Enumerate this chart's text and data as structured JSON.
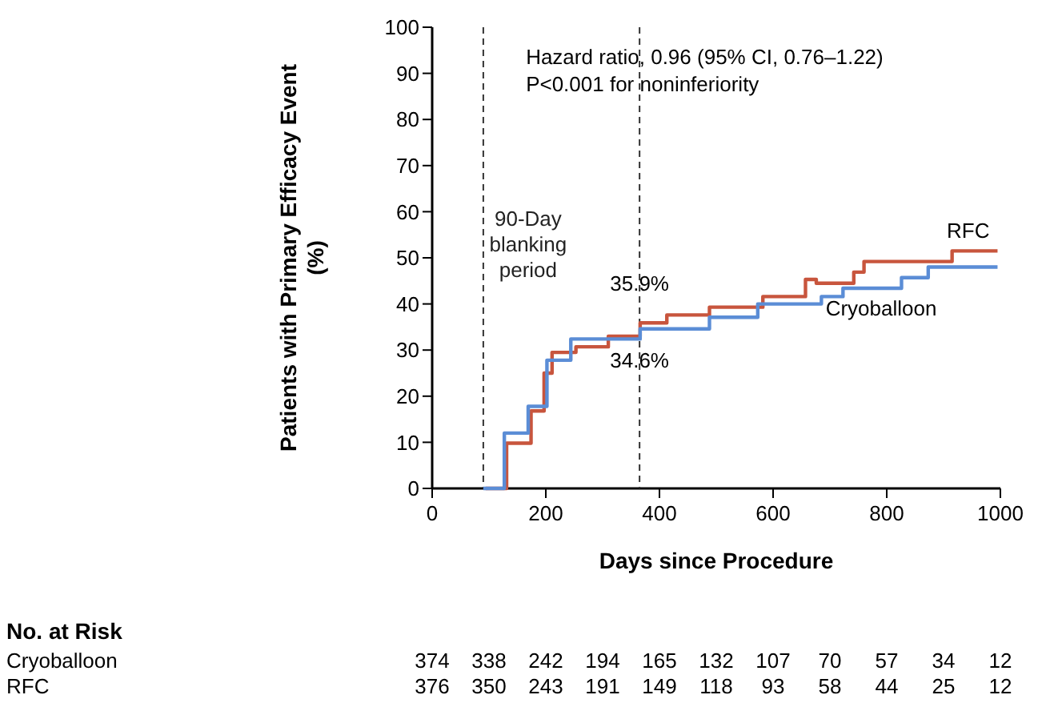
{
  "chart_data": {
    "type": "step",
    "xlabel": "Days since Procedure",
    "ylabel": "Patients with Primary Efficacy Event (%)",
    "xlim": [
      0,
      1000
    ],
    "xticks": [
      0,
      200,
      400,
      600,
      800,
      1000
    ],
    "ylim": [
      0,
      100
    ],
    "yticks": [
      0,
      10,
      20,
      30,
      40,
      50,
      60,
      70,
      80,
      90,
      100
    ],
    "grid": false,
    "series": [
      {
        "name": "RFC",
        "color": "#c8553d",
        "x": [
          94,
          131,
          174,
          197,
          211,
          253,
          310,
          366,
          413,
          488,
          582,
          657,
          676,
          742,
          760,
          915,
          995
        ],
        "values": [
          0,
          9.8,
          16.8,
          25,
          29.5,
          30.7,
          33,
          35.9,
          37.6,
          39.3,
          41.6,
          45.3,
          44.5,
          46.9,
          49.2,
          51.5,
          51.5
        ]
      },
      {
        "name": "Cryoballoon",
        "color": "#5b8dd6",
        "x": [
          90,
          127,
          169,
          202,
          244,
          366,
          488,
          573,
          685,
          723,
          732,
          826,
          873,
          995
        ],
        "values": [
          0,
          12,
          17.8,
          27.8,
          32.4,
          34.6,
          37.1,
          40,
          41.6,
          43.4,
          43.4,
          45.7,
          48,
          48
        ]
      }
    ],
    "ref_lines": [
      {
        "axis": "x",
        "value": 90,
        "label": "90-Day blanking period",
        "line_style": "dashed"
      },
      {
        "axis": "x",
        "value": 365,
        "line_style": "dashed"
      }
    ],
    "annotations": [
      "Hazard ratio, 0.96 (95% CI, 0.76–1.22)",
      "P<0.001 for noninferiority",
      {
        "text": "35.9%",
        "x": 365,
        "y": 35.9
      },
      {
        "text": "34.6%",
        "x": 365,
        "y": 34.6
      },
      "No. at Risk",
      "374 338 242 194 165 132 107 70 57 34 12",
      "376 350 243 191 149 118 93 58 44 25 12"
    ]
  }
}
